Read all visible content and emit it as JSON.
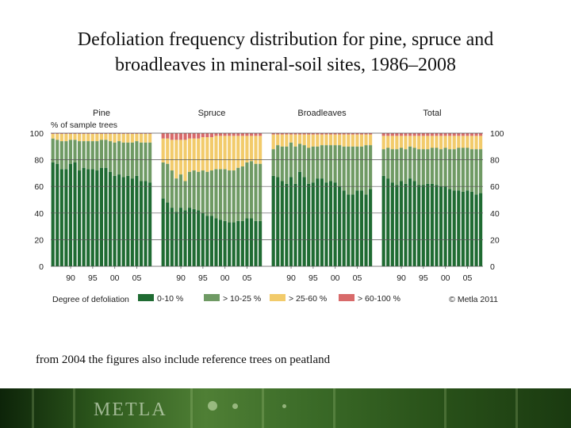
{
  "slide": {
    "title_line1": "Defoliation frequency distribution for pine, spruce and",
    "title_line2": "broadleaves in mineral-soil sites, 1986–2008",
    "footnote": "from 2004 the figures also include reference trees on peatland",
    "banner_logo": "METLA"
  },
  "chart_data": {
    "type": "bar",
    "stacked": true,
    "ylabel": "% of sample trees",
    "ylim": [
      0,
      100
    ],
    "yticks": [
      0,
      20,
      40,
      60,
      80,
      100
    ],
    "xtick_labels": [
      "90",
      "95",
      "00",
      "05"
    ],
    "x": [
      1986,
      1987,
      1988,
      1989,
      1990,
      1991,
      1992,
      1993,
      1994,
      1995,
      1996,
      1997,
      1998,
      1999,
      2000,
      2001,
      2002,
      2003,
      2004,
      2005,
      2006,
      2007,
      2008
    ],
    "legend_title": "Degree of defoliation",
    "credit": "© Metla 2011",
    "grid": true,
    "series_names": [
      "0-10 %",
      "> 10-25 %",
      "> 25-60 %",
      "> 60-100 %"
    ],
    "colors": [
      "#1f6b32",
      "#6f9a64",
      "#f2cb6b",
      "#d86a6a"
    ],
    "panels": [
      {
        "title": "Pine",
        "series": [
          {
            "name": "0-10 %",
            "values": [
              78,
              77,
              73,
              73,
              77,
              78,
              72,
              74,
              73,
              73,
              72,
              74,
              74,
              71,
              68,
              69,
              67,
              68,
              66,
              68,
              64,
              64,
              63
            ]
          },
          {
            "name": "> 10-25 %",
            "values": [
              18,
              18,
              21,
              21,
              18,
              17,
              22,
              20,
              21,
              21,
              22,
              21,
              21,
              23,
              25,
              25,
              26,
              25,
              27,
              26,
              29,
              29,
              30
            ]
          },
          {
            "name": "> 25-60 %",
            "values": [
              3.5,
              4.5,
              5.5,
              5.5,
              4.5,
              4.5,
              5.5,
              5.5,
              5.5,
              5.5,
              5.5,
              4.5,
              4.5,
              5.5,
              6.5,
              5.5,
              6.5,
              6.5,
              6.5,
              5.5,
              6.5,
              6.5,
              6.5
            ]
          },
          {
            "name": "> 60-100 %",
            "values": [
              0.5,
              0.5,
              0.5,
              0.5,
              0.5,
              0.5,
              0.5,
              0.5,
              0.5,
              0.5,
              0.5,
              0.5,
              0.5,
              0.5,
              0.5,
              0.5,
              0.5,
              0.5,
              0.5,
              0.5,
              0.5,
              0.5,
              0.5
            ]
          }
        ]
      },
      {
        "title": "Spruce",
        "series": [
          {
            "name": "0-10 %",
            "values": [
              51,
              48,
              44,
              41,
              44,
              42,
              44,
              43,
              42,
              40,
              38,
              38,
              36,
              35,
              34,
              33,
              33,
              34,
              34,
              36,
              36,
              34,
              34
            ]
          },
          {
            "name": "> 10-25 %",
            "values": [
              27,
              29,
              28,
              25,
              25,
              22,
              27,
              29,
              29,
              32,
              33,
              34,
              37,
              38,
              39,
              39,
              39,
              40,
              41,
              42,
              43,
              43,
              43
            ]
          },
          {
            "name": "> 25-60 %",
            "values": [
              18,
              19,
              23,
              29,
              26,
              31,
              25,
              24,
              25,
              25,
              26,
              25,
              25,
              25,
              25,
              26,
              26,
              24,
              23,
              20,
              19,
              21,
              21
            ]
          },
          {
            "name": "> 60-100 %",
            "values": [
              4,
              4,
              5,
              5,
              5,
              5,
              4,
              4,
              4,
              3,
              3,
              3,
              2,
              2,
              2,
              2,
              2,
              2,
              2,
              2,
              2,
              2,
              2
            ]
          }
        ]
      },
      {
        "title": "Broadleaves",
        "series": [
          {
            "name": "0-10 %",
            "values": [
              68,
              67,
              64,
              62,
              67,
              62,
              71,
              67,
              62,
              63,
              66,
              66,
              63,
              64,
              63,
              60,
              57,
              54,
              54,
              57,
              57,
              54,
              58
            ]
          },
          {
            "name": "> 10-25 %",
            "values": [
              20,
              24,
              26,
              28,
              26,
              28,
              21,
              24,
              27,
              27,
              24,
              25,
              28,
              27,
              28,
              31,
              33,
              36,
              36,
              33,
              33,
              37,
              33
            ]
          },
          {
            "name": "> 25-60 %",
            "values": [
              11,
              8,
              9,
              9,
              6,
              9,
              7,
              8,
              10,
              9,
              9,
              8,
              8,
              8,
              8,
              8,
              9,
              9,
              9,
              9,
              9,
              8,
              8
            ]
          },
          {
            "name": "> 60-100 %",
            "values": [
              1,
              1,
              1,
              1,
              1,
              1,
              1,
              1,
              1,
              1,
              1,
              1,
              1,
              1,
              1,
              1,
              1,
              1,
              1,
              1,
              1,
              1,
              1
            ]
          }
        ]
      },
      {
        "title": "Total",
        "series": [
          {
            "name": "0-10 %",
            "values": [
              68,
              66,
              63,
              61,
              64,
              62,
              66,
              64,
              61,
              61,
              62,
              62,
              61,
              60,
              60,
              58,
              57,
              57,
              56,
              57,
              56,
              54,
              55
            ]
          },
          {
            "name": "> 10-25 %",
            "values": [
              20,
              23,
              25,
              27,
              25,
              26,
              24,
              25,
              27,
              27,
              26,
              27,
              28,
              28,
              29,
              30,
              31,
              32,
              33,
              32,
              32,
              34,
              33
            ]
          },
          {
            "name": "> 25-60 %",
            "values": [
              10,
              9,
              10,
              10,
              9,
              10,
              8,
              9,
              10,
              10,
              10,
              9,
              9,
              10,
              9,
              10,
              10,
              9,
              9,
              9,
              10,
              10,
              10
            ]
          },
          {
            "name": "> 60-100 %",
            "values": [
              2,
              2,
              2,
              2,
              2,
              2,
              2,
              2,
              2,
              2,
              2,
              2,
              2,
              2,
              2,
              2,
              2,
              2,
              2,
              2,
              2,
              2,
              2
            ]
          }
        ]
      }
    ]
  }
}
